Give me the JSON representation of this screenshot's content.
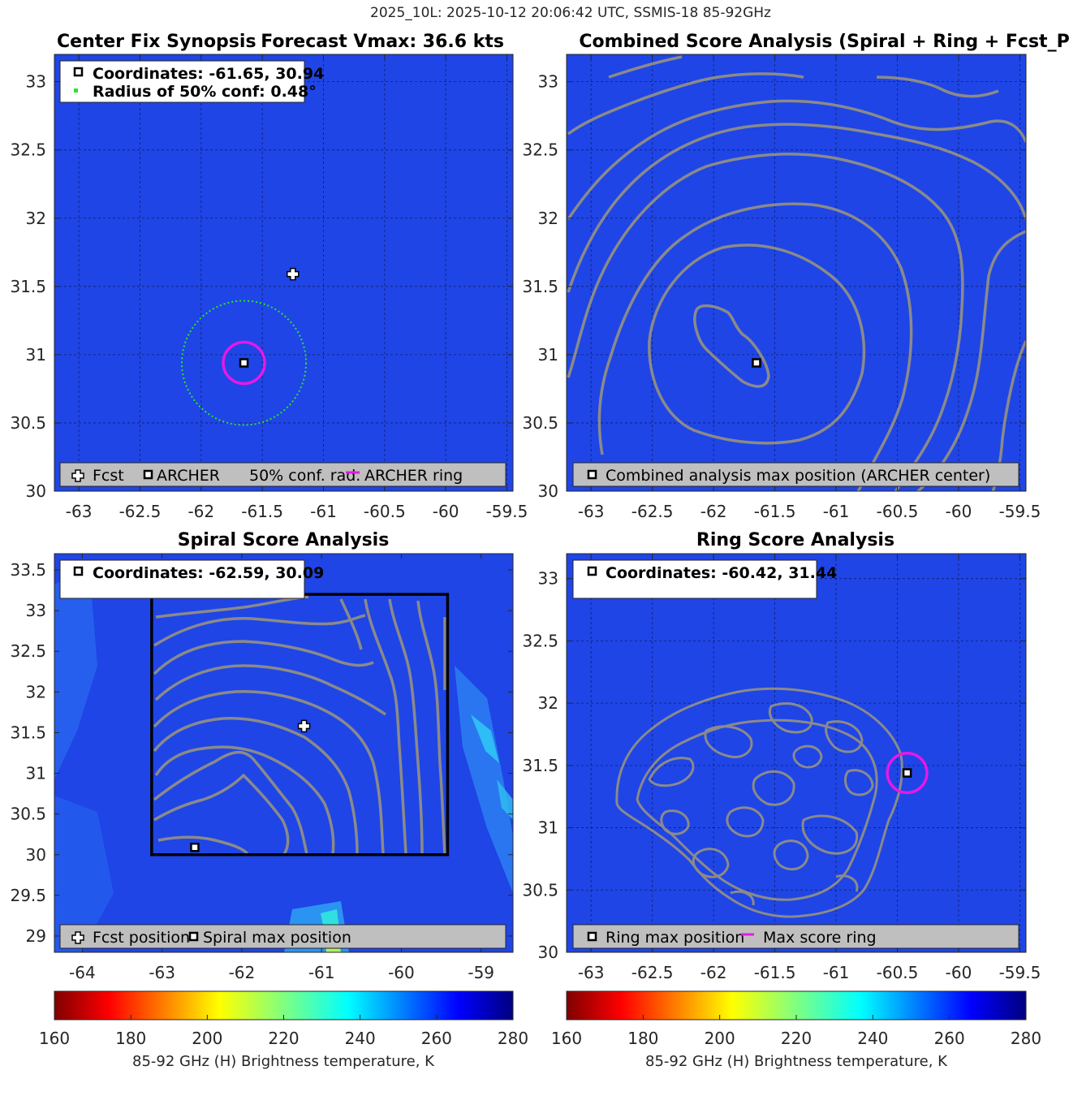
{
  "figure": {
    "suptitle": "2025_10L: 2025-10-12 20:06:42 UTC, SSMIS-18 85-92GHz"
  },
  "colors": {
    "axes_bg": "#1f45e6",
    "contour": "#8a8a8a",
    "conf_circle": "#29e629",
    "archer_ring": "#e619e6",
    "box": "#000000",
    "legend_bg": "#ffffff",
    "legend_bottom_bg": "#bfbfbf"
  },
  "chart_data": [
    {
      "id": "p1",
      "type": "heatmap",
      "title_left": "Center Fix Synopsis",
      "title_right": "Forecast Vmax: 36.6 kts",
      "xlim": [
        -63.2,
        -59.45
      ],
      "ylim": [
        30,
        33.2
      ],
      "xticks": [
        -63,
        -62.5,
        -62,
        -61.5,
        -61,
        -60.5,
        -60,
        -59.5
      ],
      "xtick_labels": [
        "-63",
        "-62.5",
        "-62",
        "-61.5",
        "-61",
        "-60.5",
        "-60",
        "-59.5"
      ],
      "yticks": [
        30,
        30.5,
        31,
        31.5,
        32,
        32.5,
        33
      ],
      "ytick_labels": [
        "30",
        "30.5",
        "31",
        "31.5",
        "32",
        "32.5",
        "33"
      ],
      "grid": true,
      "archer_center": [
        -61.65,
        30.94
      ],
      "forecast_position": [
        -61.25,
        31.59
      ],
      "conf_radius_deg": 0.48,
      "archer_ring_radius_deg": 0.16,
      "legend_top": {
        "coordinates": "Coordinates: -61.65, 30.94",
        "radius": "Radius of 50% conf: 0.48°"
      },
      "legend_bottom": [
        "Fcst",
        "ARCHER",
        "50% conf. rad.",
        "ARCHER ring"
      ]
    },
    {
      "id": "p2",
      "type": "heatmap",
      "title": "Combined Score Analysis (Spiral + Ring + Fcst_Pe",
      "xlim": [
        -63.2,
        -59.45
      ],
      "ylim": [
        30,
        33.2
      ],
      "xticks": [
        -63,
        -62.5,
        -62,
        -61.5,
        -61,
        -60.5,
        -60,
        -59.5
      ],
      "xtick_labels": [
        "-63",
        "-62.5",
        "-62",
        "-61.5",
        "-61",
        "-60.5",
        "-60",
        "-59.5"
      ],
      "yticks": [
        30,
        30.5,
        31,
        31.5,
        32,
        32.5,
        33
      ],
      "ytick_labels": [
        "30",
        "30.5",
        "31",
        "31.5",
        "32",
        "32.5",
        "33"
      ],
      "grid": true,
      "max_position": [
        -61.65,
        30.94
      ],
      "legend_bottom": [
        "Combined analysis max position (ARCHER center)"
      ]
    },
    {
      "id": "p3",
      "type": "heatmap",
      "title": "Spiral Score Analysis",
      "xlim": [
        -64.35,
        -58.6
      ],
      "ylim": [
        28.8,
        33.7
      ],
      "xticks": [
        -64,
        -63,
        -62,
        -61,
        -60,
        -59
      ],
      "xtick_labels": [
        "-64",
        "-63",
        "-62",
        "-61",
        "-60",
        "-59"
      ],
      "yticks": [
        29,
        29.5,
        30,
        30.5,
        31,
        31.5,
        32,
        32.5,
        33,
        33.5
      ],
      "ytick_labels": [
        "29",
        "29.5",
        "30",
        "30.5",
        "31",
        "31.5",
        "32",
        "32.5",
        "33",
        "33.5"
      ],
      "grid": false,
      "search_box": {
        "lon": [
          -63.13,
          -59.42
        ],
        "lat": [
          30.0,
          33.2
        ]
      },
      "forecast_position": [
        -61.22,
        31.58
      ],
      "spiral_max": [
        -62.59,
        30.09
      ],
      "legend_top": {
        "coordinates": "Coordinates: -62.59, 30.09"
      },
      "legend_bottom": [
        "Fcst position",
        "Spiral max position"
      ]
    },
    {
      "id": "p4",
      "type": "heatmap",
      "title": "Ring Score Analysis",
      "xlim": [
        -63.2,
        -59.45
      ],
      "ylim": [
        30,
        33.2
      ],
      "xticks": [
        -63,
        -62.5,
        -62,
        -61.5,
        -61,
        -60.5,
        -60,
        -59.5
      ],
      "xtick_labels": [
        "-63",
        "-62.5",
        "-62",
        "-61.5",
        "-61",
        "-60.5",
        "-60",
        "-59.5"
      ],
      "yticks": [
        30,
        30.5,
        31,
        31.5,
        32,
        32.5,
        33
      ],
      "ytick_labels": [
        "30",
        "30.5",
        "31",
        "31.5",
        "32",
        "32.5",
        "33"
      ],
      "grid": true,
      "ring_max": [
        -60.42,
        31.44
      ],
      "ring_radius_deg": 0.16,
      "legend_top": {
        "coordinates": "Coordinates: -60.42, 31.44"
      },
      "legend_bottom": [
        "Ring max position",
        "Max score ring"
      ]
    }
  ],
  "colorbars": [
    {
      "id": "cb1",
      "range": [
        160,
        280
      ],
      "ticks": [
        160,
        180,
        200,
        220,
        240,
        260,
        280
      ],
      "tick_labels": [
        "160",
        "180",
        "200",
        "220",
        "240",
        "260",
        "280"
      ],
      "label": "85-92 GHz (H) Brightness temperature, K"
    },
    {
      "id": "cb2",
      "range": [
        160,
        280
      ],
      "ticks": [
        160,
        180,
        200,
        220,
        240,
        260,
        280
      ],
      "tick_labels": [
        "160",
        "180",
        "200",
        "220",
        "240",
        "260",
        "280"
      ],
      "label": "85-92 GHz (H) Brightness temperature, K"
    }
  ]
}
